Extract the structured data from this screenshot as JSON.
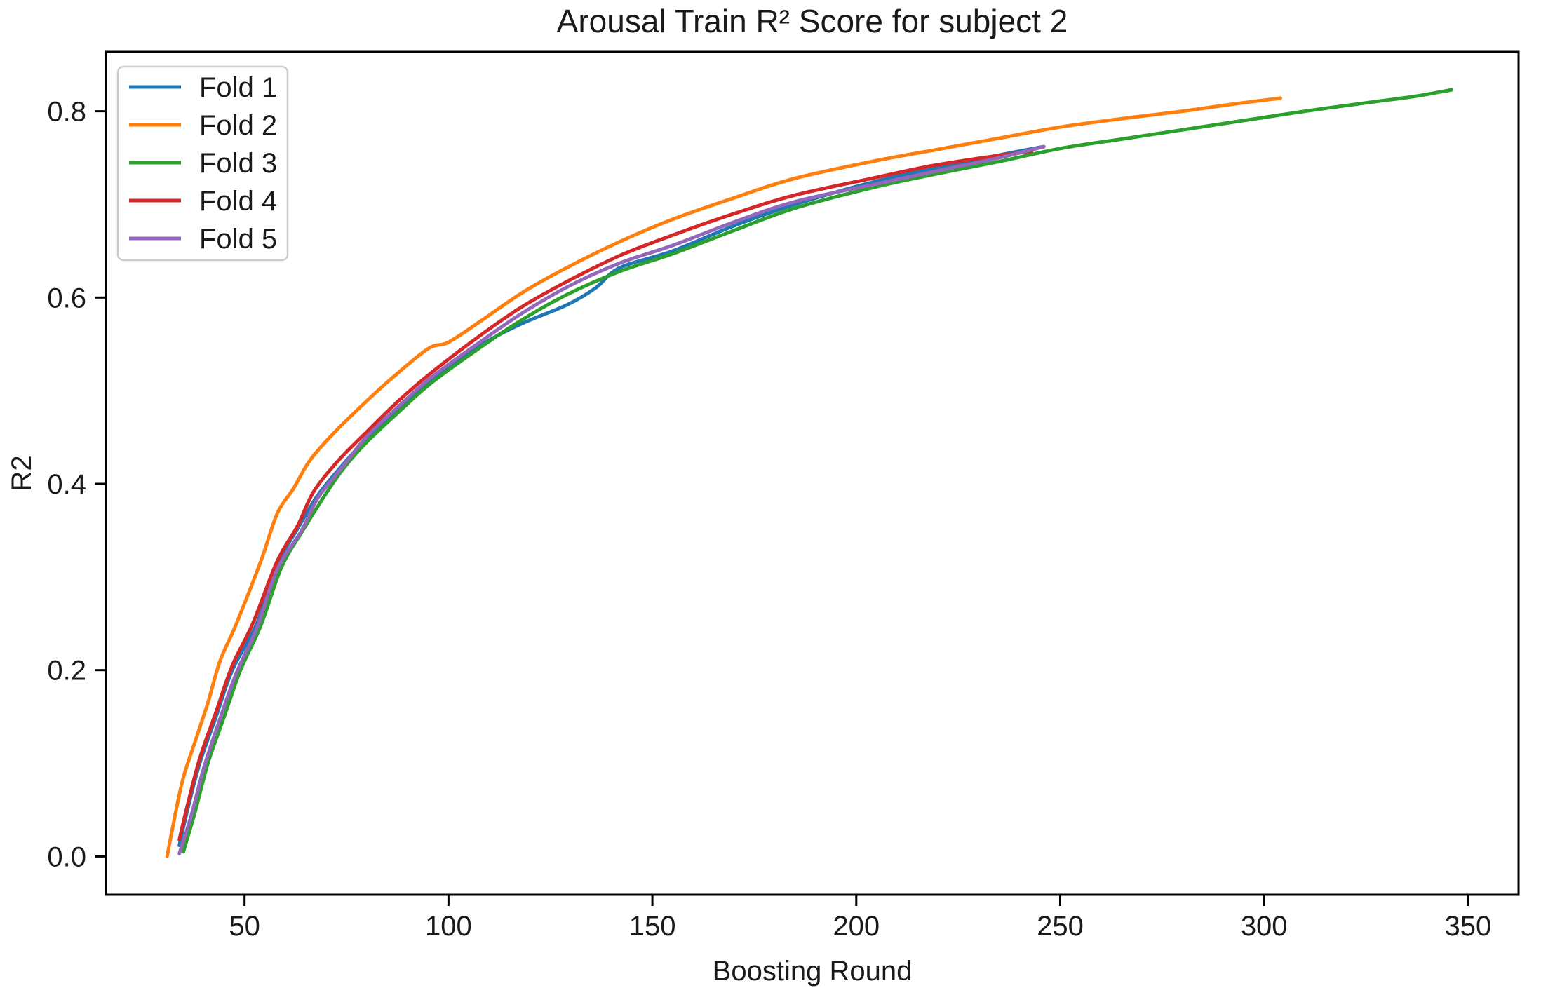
{
  "figure": {
    "background": "#ffffff",
    "text_color": "#1a1a1a",
    "spine_color": "#000000",
    "legend_border_color": "#cccccc"
  },
  "chart_data": {
    "type": "line",
    "title": "Arousal Train R² Score for subject 2",
    "xlabel": "Boosting Round",
    "ylabel": "R2",
    "xlim": [
      16.0,
      362.4
    ],
    "ylim": [
      -0.0411,
      0.8637
    ],
    "xticks": [
      50,
      100,
      150,
      200,
      250,
      300,
      350
    ],
    "xtick_labels": [
      "50",
      "100",
      "150",
      "200",
      "250",
      "300",
      "350"
    ],
    "yticks": [
      0.0,
      0.2,
      0.4,
      0.6,
      0.8
    ],
    "ytick_labels": [
      "0.0",
      "0.2",
      "0.4",
      "0.6",
      "0.8"
    ],
    "grid": false,
    "legend": {
      "position": "upper left",
      "entries": [
        "Fold 1",
        "Fold 2",
        "Fold 3",
        "Fold 4",
        "Fold 5"
      ]
    },
    "series": [
      {
        "name": "Fold 1",
        "color": "#1f77b4",
        "points": [
          [
            34,
            0.012
          ],
          [
            36,
            0.05
          ],
          [
            39,
            0.1
          ],
          [
            43,
            0.15
          ],
          [
            47,
            0.2
          ],
          [
            53,
            0.25
          ],
          [
            58,
            0.313
          ],
          [
            63,
            0.352
          ],
          [
            68,
            0.388
          ],
          [
            74,
            0.42
          ],
          [
            80,
            0.449
          ],
          [
            88,
            0.482
          ],
          [
            96,
            0.512
          ],
          [
            108,
            0.549
          ],
          [
            118,
            0.572
          ],
          [
            129,
            0.592
          ],
          [
            136,
            0.61
          ],
          [
            142,
            0.632
          ],
          [
            155,
            0.65
          ],
          [
            170,
            0.677
          ],
          [
            185,
            0.7
          ],
          [
            205,
            0.725
          ],
          [
            220,
            0.739
          ],
          [
            234,
            0.752
          ],
          [
            246,
            0.762
          ]
        ]
      },
      {
        "name": "Fold 2",
        "color": "#ff7f0e",
        "points": [
          [
            31,
            0.0
          ],
          [
            33,
            0.045
          ],
          [
            35,
            0.085
          ],
          [
            38,
            0.125
          ],
          [
            41,
            0.165
          ],
          [
            44,
            0.21
          ],
          [
            48,
            0.25
          ],
          [
            54,
            0.317
          ],
          [
            58,
            0.368
          ],
          [
            62,
            0.395
          ],
          [
            66,
            0.425
          ],
          [
            72,
            0.455
          ],
          [
            79,
            0.485
          ],
          [
            86,
            0.513
          ],
          [
            95,
            0.545
          ],
          [
            100,
            0.552
          ],
          [
            108,
            0.575
          ],
          [
            118,
            0.605
          ],
          [
            129,
            0.632
          ],
          [
            142,
            0.66
          ],
          [
            155,
            0.684
          ],
          [
            170,
            0.707
          ],
          [
            185,
            0.728
          ],
          [
            205,
            0.747
          ],
          [
            220,
            0.759
          ],
          [
            235,
            0.771
          ],
          [
            250,
            0.783
          ],
          [
            265,
            0.792
          ],
          [
            280,
            0.8
          ],
          [
            293,
            0.808
          ],
          [
            304,
            0.814
          ]
        ]
      },
      {
        "name": "Fold 3",
        "color": "#2ca02c",
        "points": [
          [
            35,
            0.005
          ],
          [
            38,
            0.05
          ],
          [
            41,
            0.1
          ],
          [
            45,
            0.15
          ],
          [
            49,
            0.2
          ],
          [
            54,
            0.248
          ],
          [
            59,
            0.31
          ],
          [
            64,
            0.348
          ],
          [
            69,
            0.383
          ],
          [
            74,
            0.415
          ],
          [
            80,
            0.445
          ],
          [
            88,
            0.478
          ],
          [
            96,
            0.509
          ],
          [
            108,
            0.547
          ],
          [
            118,
            0.576
          ],
          [
            129,
            0.603
          ],
          [
            142,
            0.628
          ],
          [
            155,
            0.647
          ],
          [
            170,
            0.672
          ],
          [
            185,
            0.696
          ],
          [
            205,
            0.719
          ],
          [
            220,
            0.733
          ],
          [
            235,
            0.746
          ],
          [
            250,
            0.76
          ],
          [
            265,
            0.77
          ],
          [
            280,
            0.78
          ],
          [
            295,
            0.79
          ],
          [
            310,
            0.8
          ],
          [
            325,
            0.809
          ],
          [
            337,
            0.816
          ],
          [
            346,
            0.823
          ]
        ]
      },
      {
        "name": "Fold 4",
        "color": "#d62728",
        "points": [
          [
            34,
            0.018
          ],
          [
            36,
            0.055
          ],
          [
            39,
            0.105
          ],
          [
            43,
            0.155
          ],
          [
            47,
            0.205
          ],
          [
            52,
            0.25
          ],
          [
            58,
            0.317
          ],
          [
            63,
            0.355
          ],
          [
            67,
            0.392
          ],
          [
            73,
            0.425
          ],
          [
            80,
            0.456
          ],
          [
            88,
            0.49
          ],
          [
            96,
            0.52
          ],
          [
            108,
            0.56
          ],
          [
            118,
            0.59
          ],
          [
            129,
            0.617
          ],
          [
            142,
            0.645
          ],
          [
            155,
            0.667
          ],
          [
            170,
            0.69
          ],
          [
            185,
            0.71
          ],
          [
            205,
            0.729
          ],
          [
            218,
            0.741
          ],
          [
            231,
            0.75
          ],
          [
            243,
            0.757
          ]
        ]
      },
      {
        "name": "Fold 5",
        "color": "#9467bd",
        "points": [
          [
            34,
            0.003
          ],
          [
            37,
            0.045
          ],
          [
            40,
            0.095
          ],
          [
            44,
            0.148
          ],
          [
            48,
            0.197
          ],
          [
            53,
            0.245
          ],
          [
            58,
            0.308
          ],
          [
            64,
            0.35
          ],
          [
            68,
            0.385
          ],
          [
            74,
            0.418
          ],
          [
            80,
            0.451
          ],
          [
            88,
            0.484
          ],
          [
            96,
            0.515
          ],
          [
            108,
            0.553
          ],
          [
            118,
            0.583
          ],
          [
            129,
            0.611
          ],
          [
            142,
            0.637
          ],
          [
            155,
            0.656
          ],
          [
            170,
            0.681
          ],
          [
            185,
            0.703
          ],
          [
            205,
            0.722
          ],
          [
            220,
            0.736
          ],
          [
            235,
            0.75
          ],
          [
            246,
            0.762
          ]
        ]
      }
    ]
  }
}
